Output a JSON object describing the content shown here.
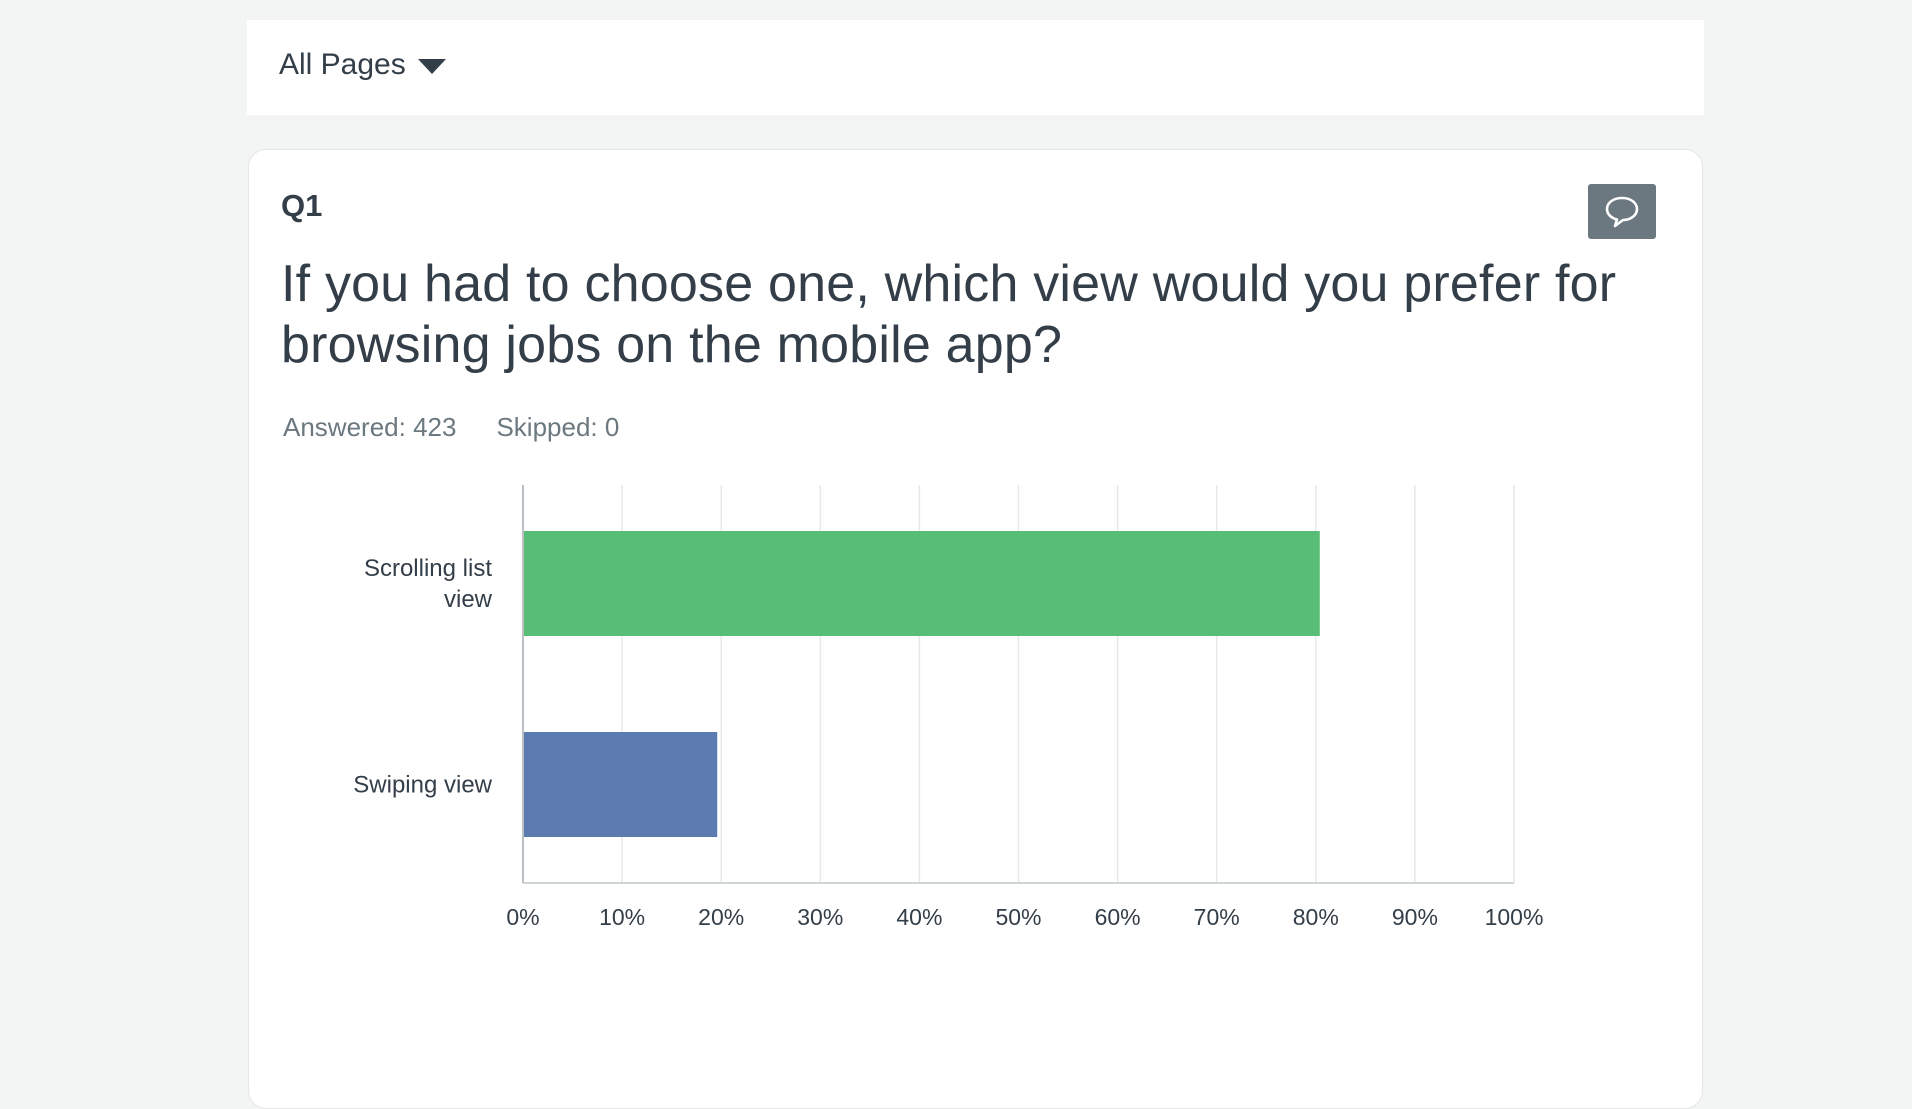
{
  "filter": {
    "label": "All Pages",
    "icon": "caret-down-icon"
  },
  "question": {
    "number": "Q1",
    "title": "If you had to choose one, which view would you prefer for browsing jobs on the mobile app?",
    "answered": "Answered: 423",
    "skipped": "Skipped: 0",
    "comment_icon": "speech-bubble-icon"
  },
  "colors": {
    "scrolling_bar": "#58bd76",
    "swiping_bar": "#5b7bb1",
    "comment_button": "#6b787f"
  },
  "chart_data": {
    "type": "bar",
    "orientation": "horizontal",
    "categories": [
      [
        "Scrolling list",
        "view"
      ],
      [
        "Swiping view"
      ]
    ],
    "values": [
      80.4,
      19.6
    ],
    "bar_colors": [
      "#58bd76",
      "#5b7bb1"
    ],
    "xlim": [
      0,
      100
    ],
    "ticks": [
      "0%",
      "10%",
      "20%",
      "30%",
      "40%",
      "50%",
      "60%",
      "70%",
      "80%",
      "90%",
      "100%"
    ],
    "grid": true
  }
}
